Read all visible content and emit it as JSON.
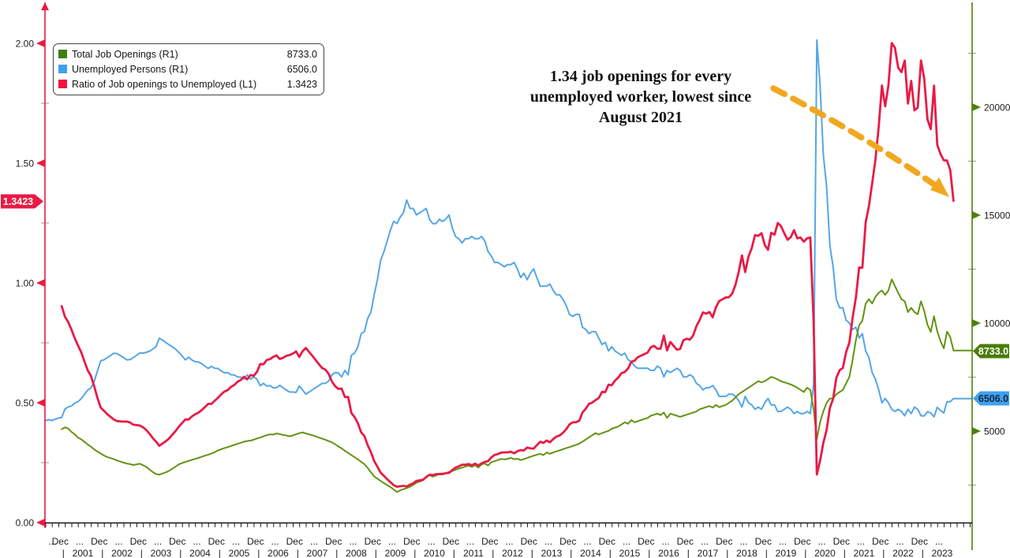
{
  "chart_data": {
    "type": "line",
    "title": "",
    "colors": {
      "ratio": "#e81b45",
      "unemployed": "#55a6e6",
      "unemployed_accent": "#3fa0ef",
      "openings_line": "#649212",
      "openings_accent": "#3f7d0e",
      "openings_axis": "#527d0c",
      "openings_badge": "#4a7c08",
      "arrow": "#f2a71f",
      "x_axis_color": "#151515",
      "axis_text": "#1b1b1b"
    },
    "legend": {
      "position": "top-left",
      "items": [
        {
          "label": "Total Job Openings (R1)",
          "value": "8733.0",
          "color": "#3f7d0e"
        },
        {
          "label": "Unemployed Persons (R1)",
          "value": "6506.0",
          "color": "#3fa0ef"
        },
        {
          "label": "Ratio of Job openings to Unemployed (L1)",
          "value": "1.3423",
          "color": "#f0143f"
        }
      ]
    },
    "annotation": {
      "lines": [
        "1.34 job openings for every",
        "unemployed worker, lowest since",
        "August 2021"
      ]
    },
    "arrow": {
      "style": "dashed",
      "color": "#f2a71f",
      "from": "annotation text",
      "points_to": "end of ratio line"
    },
    "left_axis": {
      "side": "left",
      "ticks": [
        "2.00",
        "1.50",
        "1.00",
        "0.50",
        "0.00"
      ],
      "tick_values": [
        2.0,
        1.5,
        1.0,
        0.5,
        0.0
      ],
      "minor_values": [
        1.75,
        1.25,
        0.75,
        0.25
      ],
      "range": [
        0,
        2.16
      ],
      "current_badge": "1.3423"
    },
    "right_axis": {
      "side": "right",
      "ticks": [
        "20000",
        "15000",
        "10000",
        "5000"
      ],
      "tick_values": [
        20000,
        15000,
        10000,
        5000
      ],
      "minor_values": [
        22500,
        17500,
        12500,
        7500,
        2500
      ],
      "range": [
        770,
        24600
      ],
      "openings_badge": "8733.0",
      "unemployed_badge": "6506.0"
    },
    "x_axis": {
      "month_label": "Dec",
      "gap_label": "...",
      "separator": "|",
      "start": "2000-07",
      "end": "2023-10",
      "years": [
        "2001",
        "2002",
        "2003",
        "2004",
        "2005",
        "2006",
        "2007",
        "2008",
        "2009",
        "2010",
        "2011",
        "2012",
        "2013",
        "2014",
        "2015",
        "2016",
        "2017",
        "2018",
        "2019",
        "2020",
        "2021",
        "2022",
        "2023"
      ]
    },
    "series": [
      {
        "name": "Total Job Openings (R1)",
        "axis": "right",
        "frequency": "monthly",
        "start": "2000-12",
        "last_value": 8733.0,
        "values": [
          5088,
          5173,
          5120,
          4960,
          4850,
          4700,
          4620,
          4500,
          4380,
          4280,
          4150,
          4050,
          3960,
          3870,
          3800,
          3750,
          3700,
          3640,
          3590,
          3540,
          3500,
          3470,
          3430,
          3460,
          3490,
          3420,
          3340,
          3220,
          3100,
          3010,
          2980,
          3040,
          3090,
          3160,
          3260,
          3360,
          3460,
          3520,
          3570,
          3620,
          3670,
          3710,
          3760,
          3810,
          3860,
          3910,
          3960,
          4020,
          4110,
          4160,
          4210,
          4260,
          4310,
          4360,
          4410,
          4460,
          4510,
          4540,
          4560,
          4600,
          4660,
          4700,
          4760,
          4810,
          4850,
          4840,
          4890,
          4860,
          4820,
          4800,
          4760,
          4800,
          4850,
          4900,
          4940,
          4890,
          4850,
          4810,
          4760,
          4700,
          4650,
          4600,
          4540,
          4480,
          4390,
          4290,
          4200,
          4090,
          3990,
          3890,
          3790,
          3690,
          3580,
          3470,
          3300,
          3090,
          2900,
          2800,
          2690,
          2590,
          2500,
          2410,
          2300,
          2180,
          2260,
          2310,
          2360,
          2420,
          2510,
          2610,
          2660,
          2720,
          2900,
          2960,
          2890,
          2950,
          3000,
          2990,
          3050,
          3110,
          3150,
          3210,
          3260,
          3310,
          3360,
          3400,
          3340,
          3420,
          3310,
          3460,
          3500,
          3410,
          3560,
          3610,
          3660,
          3710,
          3690,
          3720,
          3760,
          3700,
          3720,
          3660,
          3700,
          3760,
          3810,
          3860,
          3910,
          3950,
          3890,
          4010,
          3950,
          4010,
          4060,
          4110,
          4160,
          4210,
          4260,
          4310,
          4360,
          4420,
          4510,
          4610,
          4710,
          4810,
          4910,
          4840,
          4910,
          4960,
          5010,
          5110,
          5160,
          5210,
          5310,
          5410,
          5340,
          5510,
          5410,
          5460,
          5510,
          5560,
          5610,
          5710,
          5760,
          5810,
          5740,
          5860,
          5610,
          5810,
          5760,
          5710,
          5660,
          5710,
          5760,
          5810,
          5860,
          5910,
          6010,
          6060,
          6110,
          6160,
          6090,
          6210,
          6110,
          6160,
          6210,
          6310,
          6410,
          6560,
          6710,
          6810,
          6910,
          7010,
          7110,
          7210,
          7310,
          7260,
          7310,
          7410,
          7510,
          7460,
          7390,
          7310,
          7260,
          7210,
          7160,
          7090,
          7010,
          6910,
          6810,
          7010,
          6910,
          6010,
          4630,
          5410,
          5910,
          6310,
          6510,
          6510,
          6710,
          6810,
          6910,
          7210,
          7510,
          8310,
          9210,
          9910,
          10110,
          10910,
          11110,
          10910,
          11210,
          11410,
          11510,
          11310,
          11510,
          12030,
          11710,
          11410,
          11110,
          11010,
          10510,
          10710,
          10510,
          10410,
          11010,
          10560,
          9930,
          9590,
          10320,
          9620,
          9170,
          8830,
          9610,
          9350,
          8733
        ]
      },
      {
        "name": "Unemployed Persons (R1)",
        "axis": "right",
        "frequency": "monthly",
        "start": "2000-07",
        "last_value": 6506.0,
        "values": [
          5480,
          5530,
          5490,
          5550,
          5600,
          5634,
          6020,
          6120,
          6160,
          6300,
          6360,
          6500,
          6700,
          6900,
          7000,
          7300,
          7800,
          8260,
          8300,
          8400,
          8500,
          8600,
          8590,
          8500,
          8410,
          8300,
          8310,
          8400,
          8510,
          8620,
          8610,
          8650,
          8700,
          8800,
          8920,
          9300,
          9210,
          9100,
          9000,
          8900,
          8790,
          8640,
          8480,
          8300,
          8420,
          8290,
          8210,
          8200,
          8120,
          8010,
          7900,
          8000,
          7910,
          7900,
          7780,
          7700,
          7710,
          7610,
          7600,
          7510,
          7500,
          7410,
          7600,
          7410,
          7510,
          7410,
          7100,
          7210,
          7090,
          7110,
          7000,
          7010,
          7120,
          7010,
          6900,
          6810,
          6810,
          6790,
          7090,
          6910,
          6710,
          6810,
          6910,
          7010,
          7110,
          7210,
          7210,
          7310,
          7610,
          7710,
          7690,
          7510,
          7810,
          7610,
          8510,
          8610,
          8910,
          9510,
          9610,
          10210,
          10510,
          11310,
          12010,
          12910,
          13310,
          13810,
          14310,
          14710,
          14610,
          14910,
          15110,
          15700,
          15310,
          15310,
          15010,
          15110,
          15210,
          15310,
          14810,
          14610,
          14610,
          14810,
          14710,
          14810,
          15010,
          14410,
          14010,
          13910,
          13710,
          13910,
          13910,
          14010,
          13910,
          13910,
          14010,
          13810,
          13310,
          13110,
          12810,
          12810,
          12710,
          12610,
          12710,
          12710,
          12810,
          12510,
          12110,
          12310,
          12010,
          12310,
          12510,
          12110,
          11710,
          11710,
          11710,
          11810,
          11510,
          11310,
          11310,
          11110,
          10810,
          10410,
          10310,
          10410,
          10410,
          9810,
          9710,
          9510,
          9610,
          9610,
          9310,
          9010,
          9110,
          8710,
          8910,
          8710,
          8610,
          8510,
          8610,
          8310,
          8210,
          8010,
          7910,
          7910,
          7910,
          7910,
          7810,
          7810,
          8010,
          7910,
          7510,
          7810,
          7710,
          7810,
          7910,
          7810,
          7510,
          7510,
          7610,
          7510,
          7210,
          7110,
          6910,
          7010,
          7010,
          7110,
          6910,
          6610,
          6610,
          6610,
          6710,
          6710,
          6610,
          6410,
          6110,
          6610,
          6310,
          6210,
          6010,
          6110,
          6010,
          6310,
          6510,
          6210,
          6210,
          5910,
          5910,
          6010,
          6110,
          6010,
          5810,
          5910,
          5810,
          5810,
          5910,
          5810,
          7140,
          23110,
          21010,
          17810,
          16310,
          13610,
          12610,
          11110,
          10710,
          10710,
          10130,
          10010,
          9710,
          9810,
          9310,
          9510,
          8710,
          8410,
          7710,
          7410,
          6910,
          6310,
          6510,
          6310,
          6010,
          5910,
          6010,
          5910,
          5710,
          6010,
          5810,
          6110,
          6010,
          5710,
          5700,
          5900,
          5840,
          5660,
          6100,
          5960,
          5840,
          6360,
          6360,
          6506
        ]
      },
      {
        "name": "Ratio of Job openings to Unemployed (L1)",
        "axis": "left",
        "frequency": "monthly",
        "start": "2000-12",
        "derived_from": "openings / unemployed",
        "last_value": 1.3423
      }
    ]
  }
}
